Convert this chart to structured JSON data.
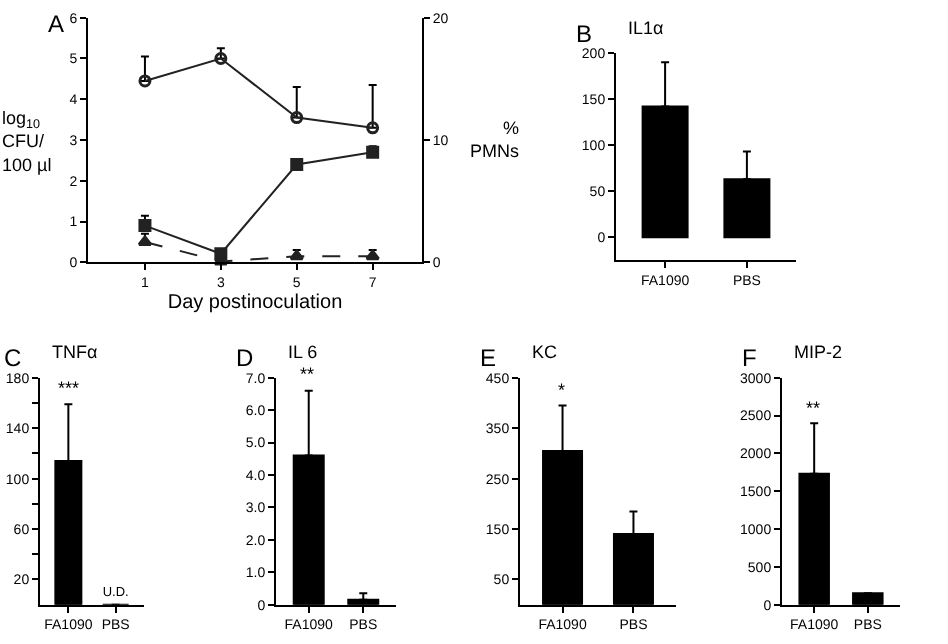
{
  "chart_data": [
    {
      "type": "line",
      "title": "A",
      "xlabel": "Day postinoculation",
      "ylabel": "log$_{10}$\nCFU/\n100 µl",
      "y2label": "%\nPMNs",
      "x": [
        1,
        3,
        5,
        7
      ],
      "xlim": [
        -0.5,
        8.3
      ],
      "xticks": [
        1,
        3,
        5,
        7
      ],
      "ylim": [
        0,
        6
      ],
      "yticks": [
        0,
        1,
        2,
        3,
        4,
        5,
        6
      ],
      "y2lim": [
        0,
        20
      ],
      "y2ticks": [
        0,
        10,
        20
      ],
      "grid": false,
      "legend": false,
      "series": [
        {
          "color": "#222222",
          "marker": "circle",
          "line_style": "solid",
          "values": [
            4.45,
            5.0,
            3.55,
            3.3
          ],
          "errors": [
            [
              4.45,
              5.05
            ],
            [
              5.0,
              5.25
            ],
            [
              3.55,
              4.3
            ],
            [
              3.3,
              4.35
            ]
          ]
        },
        {
          "color": "#222222",
          "marker": "square",
          "line_style": "solid",
          "axis": "y2",
          "values": [
            3.0,
            0.7,
            8.0,
            9.0
          ],
          "errors": [
            [
              3.0,
              3.8
            ],
            [
              0.7,
              1.0
            ],
            null,
            [
              9.0,
              9.5
            ]
          ]
        },
        {
          "color": "#222222",
          "marker": "triangle",
          "line_style": "dashed",
          "values": [
            0.5,
            0.02,
            0.15,
            0.15
          ],
          "errors": [
            [
              0.5,
              0.7
            ],
            null,
            [
              0.15,
              0.3
            ],
            [
              0.15,
              0.3
            ]
          ]
        }
      ]
    },
    {
      "type": "bar",
      "title": "B",
      "subtitle": "IL1α",
      "categories": [
        "FA1090",
        "PBS"
      ],
      "values": [
        142,
        63
      ],
      "errors": [
        [
          142,
          190
        ],
        [
          63,
          93
        ]
      ],
      "color": "#000000",
      "ylim": [
        -25,
        200
      ],
      "yticks": [
        0,
        50,
        100,
        150,
        200
      ],
      "grid": false,
      "legend": false
    },
    {
      "type": "bar",
      "title": "C",
      "subtitle": "TNFα",
      "categories": [
        "FA1090",
        "PBS"
      ],
      "values": [
        114,
        0
      ],
      "value_labels": [
        null,
        "U.D."
      ],
      "errors": [
        [
          114,
          159
        ],
        null
      ],
      "color": "#000000",
      "ylim": [
        0,
        180
      ],
      "yticks": [
        20,
        {
          "value": 40,
          "label": null
        },
        60,
        {
          "value": 80,
          "label": null
        },
        100,
        {
          "value": 120,
          "label": null
        },
        140,
        {
          "value": 160,
          "label": null
        },
        180
      ],
      "grid": false,
      "legend": false,
      "annotations": [
        {
          "text": "***",
          "x": "FA1090",
          "y": 159
        }
      ]
    },
    {
      "type": "bar",
      "title": "D",
      "subtitle": "IL 6",
      "categories": [
        "FA1090",
        "PBS"
      ],
      "values": [
        4.6,
        0.15
      ],
      "errors": [
        [
          4.6,
          6.6
        ],
        [
          0.15,
          0.35
        ]
      ],
      "color": "#000000",
      "ylim": [
        0,
        7
      ],
      "yticks": [
        0,
        {
          "value": 1,
          "label": "1.0"
        },
        {
          "value": 2,
          "label": "2.0"
        },
        {
          "value": 3,
          "label": "3.0"
        },
        {
          "value": 4,
          "label": "4.0"
        },
        {
          "value": 5,
          "label": "5.0"
        },
        {
          "value": 6,
          "label": "6.0"
        },
        {
          "value": 7,
          "label": "7.0"
        }
      ],
      "grid": false,
      "legend": false,
      "annotations": [
        {
          "text": "**",
          "x": "FA1090",
          "y": 6.6
        }
      ]
    },
    {
      "type": "bar",
      "title": "E",
      "subtitle": "KC",
      "categories": [
        "FA1090",
        "PBS"
      ],
      "values": [
        305,
        140
      ],
      "errors": [
        [
          305,
          395
        ],
        [
          140,
          185
        ]
      ],
      "color": "#000000",
      "ylim": [
        0,
        450
      ],
      "yticks": [
        50,
        150,
        250,
        350,
        450
      ],
      "grid": false,
      "legend": false,
      "annotations": [
        {
          "text": "*",
          "x": "FA1090",
          "y": 395
        }
      ]
    },
    {
      "type": "bar",
      "title": "F",
      "subtitle": "MIP-2",
      "categories": [
        "FA1090",
        "PBS"
      ],
      "values": [
        1730,
        150
      ],
      "errors": [
        [
          1730,
          2400
        ],
        null
      ],
      "color": "#000000",
      "ylim": [
        0,
        3000
      ],
      "yticks": [
        0,
        500,
        1000,
        1500,
        2000,
        2500,
        3000
      ],
      "grid": false,
      "legend": false,
      "annotations": [
        {
          "text": "**",
          "x": "FA1090",
          "y": 2400
        }
      ]
    }
  ]
}
